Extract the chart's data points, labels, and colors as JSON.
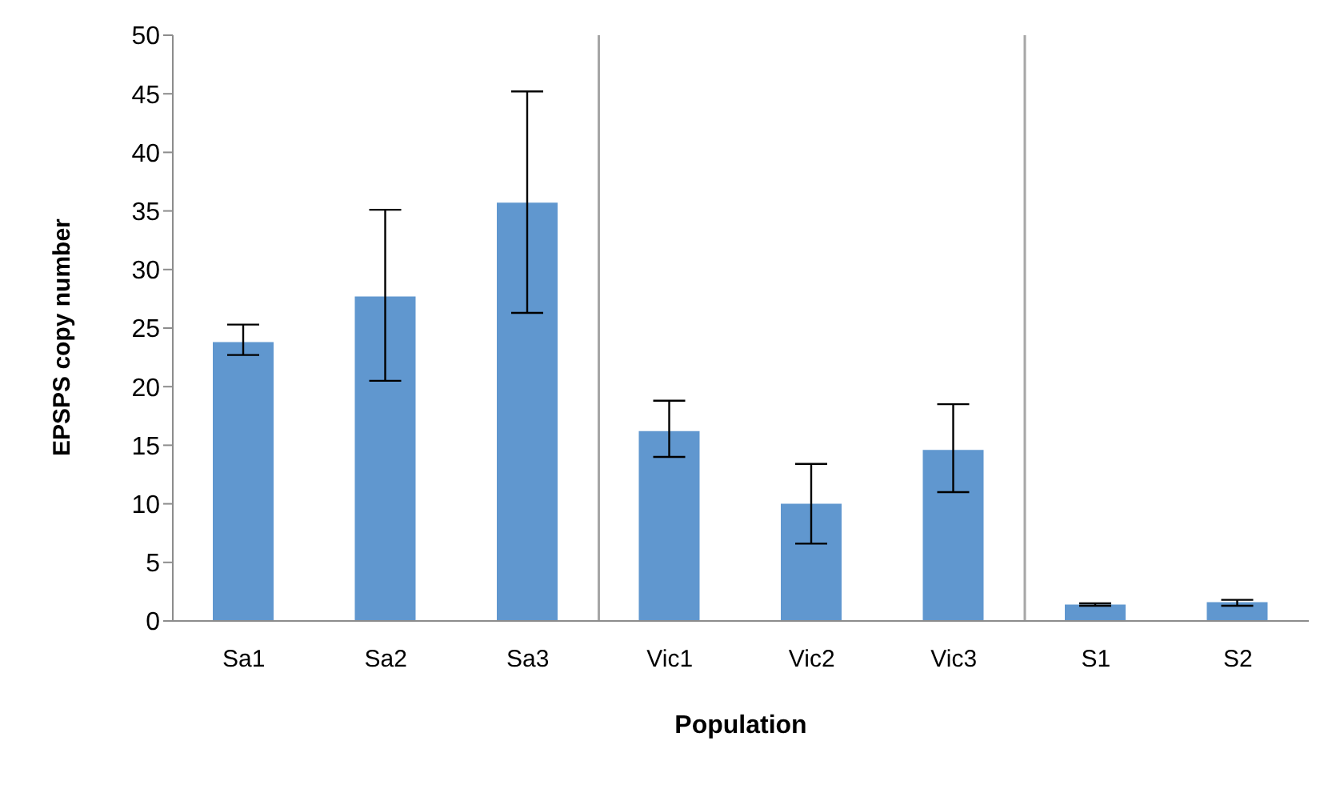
{
  "chart_data": {
    "type": "bar",
    "xlabel": "Population",
    "ylabel": "EPSPS copy number",
    "categories": [
      "Sa1",
      "Sa2",
      "Sa3",
      "Vic1",
      "Vic2",
      "Vic3",
      "S1",
      "S2"
    ],
    "values": [
      23.8,
      27.7,
      35.7,
      16.2,
      10.0,
      14.6,
      1.4,
      1.6
    ],
    "errors": [
      [
        22.7,
        25.3
      ],
      [
        20.5,
        35.1
      ],
      [
        26.3,
        45.2
      ],
      [
        14.0,
        18.8
      ],
      [
        6.6,
        13.4
      ],
      [
        11.0,
        18.5
      ],
      [
        1.3,
        1.5
      ],
      [
        1.3,
        1.8
      ]
    ],
    "color": "#6097cf",
    "ylim": [
      0,
      50
    ],
    "yticks": [
      0,
      5,
      10,
      15,
      20,
      25,
      30,
      35,
      40,
      45,
      50
    ],
    "grid": false,
    "legend": false
  }
}
